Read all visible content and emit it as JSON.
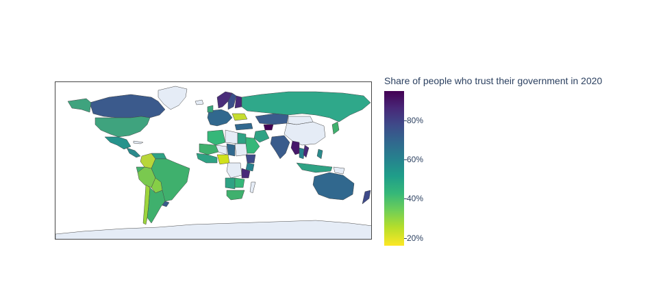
{
  "legend": {
    "title": "Share of people who trust their government in 2020",
    "ticks": [
      {
        "label": "80%",
        "value": 80
      },
      {
        "label": "60%",
        "value": 60
      },
      {
        "label": "40%",
        "value": 40
      },
      {
        "label": "20%",
        "value": 20
      }
    ],
    "range": [
      16,
      95
    ],
    "colorscale": "viridis-reversed",
    "colors": [
      "#440154",
      "#3e4a89",
      "#26828e",
      "#35b779",
      "#fde725"
    ]
  },
  "map": {
    "projection": "equirectangular",
    "land_no_data_color": "#e5ecf6",
    "border_color": "#444444"
  },
  "chart_data": {
    "type": "choropleth",
    "title": "Share of people who trust their government in 2020",
    "colorbar_range": [
      16,
      95
    ],
    "approximate_values": [
      {
        "country": "Canada",
        "value": 65
      },
      {
        "country": "United States",
        "value": 45
      },
      {
        "country": "Mexico",
        "value": 55
      },
      {
        "country": "Colombia",
        "value": 30
      },
      {
        "country": "Venezuela",
        "value": 50
      },
      {
        "country": "Ecuador",
        "value": 40
      },
      {
        "country": "Peru",
        "value": 35
      },
      {
        "country": "Brazil",
        "value": 42
      },
      {
        "country": "Bolivia",
        "value": 35
      },
      {
        "country": "Chile",
        "value": 35
      },
      {
        "country": "Argentina",
        "value": 40
      },
      {
        "country": "Uruguay",
        "value": 65
      },
      {
        "country": "Russia",
        "value": 45
      },
      {
        "country": "Kazakhstan",
        "value": 65
      },
      {
        "country": "Uzbekistan",
        "value": 93
      },
      {
        "country": "Ukraine",
        "value": 30
      },
      {
        "country": "Norway",
        "value": 70
      },
      {
        "country": "Sweden",
        "value": 75
      },
      {
        "country": "Finland",
        "value": 80
      },
      {
        "country": "Iran",
        "value": 55
      },
      {
        "country": "Saudi Arabia",
        "value": 50
      },
      {
        "country": "India",
        "value": 70
      },
      {
        "country": "Myanmar",
        "value": 90
      },
      {
        "country": "Thailand",
        "value": 55
      },
      {
        "country": "Vietnam",
        "value": 85
      },
      {
        "country": "Indonesia",
        "value": 55
      },
      {
        "country": "Philippines",
        "value": 60
      },
      {
        "country": "Japan",
        "value": 40
      },
      {
        "country": "Australia",
        "value": 65
      },
      {
        "country": "New Zealand",
        "value": 75
      },
      {
        "country": "Nigeria",
        "value": 30
      },
      {
        "country": "Niger",
        "value": 25
      },
      {
        "country": "Ethiopia",
        "value": 70
      },
      {
        "country": "Kenya",
        "value": 55
      },
      {
        "country": "Tanzania",
        "value": 80
      },
      {
        "country": "Mali",
        "value": 40
      },
      {
        "country": "Algeria",
        "value": 40
      },
      {
        "country": "Egypt",
        "value": 45
      },
      {
        "country": "South Africa",
        "value": 40
      }
    ]
  }
}
